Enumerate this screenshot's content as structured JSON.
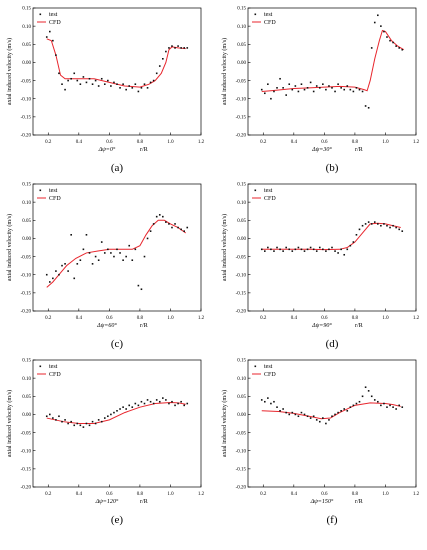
{
  "figure": {
    "ylabel": "axial induced velocity (m/s)",
    "xlabel": "r/R",
    "xticks": [
      "0.2",
      "0.4",
      "0.6",
      "0.8",
      "1.0",
      "1.2"
    ],
    "yticks": [
      "0.15",
      "0.10",
      "0.05",
      "0.00",
      "-0.05",
      "-0.10",
      "-0.15",
      "-0.20"
    ],
    "legend": {
      "test": "test",
      "cfd": "CFD"
    },
    "colors": {
      "cfd": "#e8262d",
      "test": "#111111"
    }
  },
  "chart_data": [
    {
      "type": "scatter",
      "tag": "(a)",
      "phase_label": "Δψ=0°",
      "xlim": [
        0.1,
        1.2
      ],
      "ylim": [
        -0.2,
        0.15
      ],
      "series": [
        {
          "name": "test",
          "x": [
            0.19,
            0.21,
            0.23,
            0.25,
            0.27,
            0.29,
            0.31,
            0.33,
            0.35,
            0.37,
            0.39,
            0.41,
            0.43,
            0.45,
            0.47,
            0.49,
            0.51,
            0.53,
            0.55,
            0.57,
            0.59,
            0.61,
            0.63,
            0.65,
            0.67,
            0.69,
            0.71,
            0.73,
            0.75,
            0.77,
            0.79,
            0.81,
            0.83,
            0.85,
            0.87,
            0.89,
            0.91,
            0.93,
            0.95,
            0.97,
            0.99,
            1.01,
            1.03,
            1.05,
            1.07,
            1.09,
            1.11
          ],
          "y": [
            0.07,
            0.085,
            0.06,
            0.02,
            -0.03,
            -0.06,
            -0.075,
            -0.05,
            -0.045,
            -0.03,
            -0.05,
            -0.06,
            -0.04,
            -0.055,
            -0.045,
            -0.06,
            -0.05,
            -0.065,
            -0.045,
            -0.06,
            -0.05,
            -0.065,
            -0.055,
            -0.06,
            -0.07,
            -0.06,
            -0.075,
            -0.065,
            -0.07,
            -0.06,
            -0.08,
            -0.07,
            -0.06,
            -0.07,
            -0.055,
            -0.05,
            -0.03,
            -0.01,
            0.01,
            0.03,
            0.04,
            0.045,
            0.04,
            0.045,
            0.04,
            0.04,
            0.04
          ]
        },
        {
          "name": "CFD",
          "x": [
            0.19,
            0.22,
            0.25,
            0.28,
            0.31,
            0.35,
            0.4,
            0.5,
            0.6,
            0.7,
            0.8,
            0.86,
            0.9,
            0.94,
            0.97,
            0.99,
            1.01,
            1.05,
            1.1
          ],
          "y": [
            0.065,
            0.06,
            0.02,
            -0.035,
            -0.045,
            -0.045,
            -0.045,
            -0.045,
            -0.055,
            -0.065,
            -0.068,
            -0.06,
            -0.05,
            -0.03,
            0.0,
            0.035,
            0.043,
            0.04,
            0.038
          ]
        }
      ]
    },
    {
      "type": "scatter",
      "tag": "(b)",
      "phase_label": "Δψ=30°",
      "xlim": [
        0.1,
        1.2
      ],
      "ylim": [
        -0.2,
        0.15
      ],
      "series": [
        {
          "name": "test",
          "x": [
            0.19,
            0.21,
            0.23,
            0.25,
            0.27,
            0.29,
            0.31,
            0.33,
            0.35,
            0.37,
            0.39,
            0.41,
            0.43,
            0.45,
            0.47,
            0.49,
            0.51,
            0.53,
            0.55,
            0.57,
            0.59,
            0.61,
            0.63,
            0.65,
            0.67,
            0.69,
            0.71,
            0.73,
            0.75,
            0.77,
            0.79,
            0.81,
            0.83,
            0.85,
            0.87,
            0.89,
            0.91,
            0.93,
            0.95,
            0.97,
            0.99,
            1.01,
            1.03,
            1.05,
            1.07,
            1.09,
            1.11
          ],
          "y": [
            -0.075,
            -0.085,
            -0.06,
            -0.1,
            -0.08,
            -0.07,
            -0.045,
            -0.07,
            -0.09,
            -0.06,
            -0.075,
            -0.065,
            -0.08,
            -0.06,
            -0.075,
            -0.07,
            -0.055,
            -0.08,
            -0.065,
            -0.07,
            -0.06,
            -0.075,
            -0.065,
            -0.07,
            -0.08,
            -0.06,
            -0.07,
            -0.075,
            -0.065,
            -0.075,
            -0.08,
            -0.07,
            -0.075,
            -0.08,
            -0.12,
            -0.125,
            0.04,
            0.11,
            0.13,
            0.1,
            0.085,
            0.07,
            0.06,
            0.055,
            0.045,
            0.04,
            0.035
          ]
        },
        {
          "name": "CFD",
          "x": [
            0.19,
            0.25,
            0.3,
            0.4,
            0.5,
            0.6,
            0.7,
            0.8,
            0.86,
            0.88,
            0.9,
            0.93,
            0.96,
            0.98,
            1.0,
            1.04,
            1.08,
            1.12
          ],
          "y": [
            -0.08,
            -0.078,
            -0.076,
            -0.072,
            -0.07,
            -0.068,
            -0.066,
            -0.068,
            -0.075,
            -0.078,
            -0.05,
            0.01,
            0.06,
            0.088,
            0.085,
            0.06,
            0.045,
            0.035
          ]
        }
      ]
    },
    {
      "type": "scatter",
      "tag": "(c)",
      "phase_label": "Δψ=60°",
      "xlim": [
        0.1,
        1.2
      ],
      "ylim": [
        -0.2,
        0.15
      ],
      "series": [
        {
          "name": "test",
          "x": [
            0.19,
            0.21,
            0.23,
            0.25,
            0.27,
            0.29,
            0.31,
            0.33,
            0.35,
            0.37,
            0.39,
            0.41,
            0.43,
            0.45,
            0.47,
            0.49,
            0.51,
            0.53,
            0.55,
            0.57,
            0.59,
            0.61,
            0.63,
            0.65,
            0.67,
            0.69,
            0.71,
            0.73,
            0.75,
            0.77,
            0.79,
            0.81,
            0.83,
            0.85,
            0.87,
            0.89,
            0.91,
            0.93,
            0.95,
            0.97,
            0.99,
            1.01,
            1.03,
            1.05,
            1.07,
            1.09,
            1.11
          ],
          "y": [
            -0.1,
            -0.12,
            -0.11,
            -0.09,
            -0.1,
            -0.075,
            -0.07,
            -0.09,
            0.01,
            -0.11,
            -0.07,
            -0.06,
            -0.03,
            0.01,
            -0.04,
            -0.07,
            -0.05,
            -0.06,
            -0.01,
            -0.04,
            -0.03,
            -0.04,
            -0.05,
            -0.03,
            -0.04,
            -0.06,
            -0.05,
            -0.02,
            -0.06,
            -0.03,
            -0.13,
            -0.14,
            -0.05,
            0.0,
            0.02,
            0.04,
            0.06,
            0.065,
            0.06,
            0.045,
            0.04,
            0.03,
            0.04,
            0.03,
            0.025,
            0.02,
            0.03
          ]
        },
        {
          "name": "CFD",
          "x": [
            0.19,
            0.23,
            0.27,
            0.32,
            0.38,
            0.45,
            0.52,
            0.6,
            0.68,
            0.75,
            0.8,
            0.84,
            0.88,
            0.92,
            0.96,
            1.0,
            1.05,
            1.1
          ],
          "y": [
            -0.135,
            -0.12,
            -0.1,
            -0.075,
            -0.055,
            -0.04,
            -0.035,
            -0.03,
            -0.03,
            -0.03,
            -0.02,
            0.01,
            0.035,
            0.05,
            0.05,
            0.04,
            0.03,
            0.015
          ]
        }
      ]
    },
    {
      "type": "scatter",
      "tag": "(d)",
      "phase_label": "Δψ=90°",
      "xlim": [
        0.1,
        1.2
      ],
      "ylim": [
        -0.2,
        0.15
      ],
      "series": [
        {
          "name": "test",
          "x": [
            0.19,
            0.21,
            0.23,
            0.25,
            0.27,
            0.29,
            0.31,
            0.33,
            0.35,
            0.37,
            0.39,
            0.41,
            0.43,
            0.45,
            0.47,
            0.49,
            0.51,
            0.53,
            0.55,
            0.57,
            0.59,
            0.61,
            0.63,
            0.65,
            0.67,
            0.69,
            0.71,
            0.73,
            0.75,
            0.77,
            0.79,
            0.81,
            0.83,
            0.85,
            0.87,
            0.89,
            0.91,
            0.93,
            0.95,
            0.97,
            0.99,
            1.01,
            1.03,
            1.05,
            1.07,
            1.09,
            1.11
          ],
          "y": [
            -0.03,
            -0.035,
            -0.025,
            -0.03,
            -0.035,
            -0.025,
            -0.03,
            -0.035,
            -0.025,
            -0.03,
            -0.035,
            -0.03,
            -0.025,
            -0.03,
            -0.035,
            -0.03,
            -0.025,
            -0.03,
            -0.035,
            -0.025,
            -0.03,
            -0.035,
            -0.03,
            -0.025,
            -0.035,
            -0.04,
            -0.03,
            -0.045,
            -0.03,
            -0.02,
            -0.01,
            0.01,
            0.025,
            0.035,
            0.04,
            0.045,
            0.04,
            0.045,
            0.04,
            0.035,
            0.04,
            0.035,
            0.03,
            0.035,
            0.03,
            0.025,
            0.02
          ]
        },
        {
          "name": "CFD",
          "x": [
            0.19,
            0.3,
            0.4,
            0.5,
            0.6,
            0.7,
            0.75,
            0.8,
            0.85,
            0.9,
            0.95,
            1.0,
            1.05,
            1.1
          ],
          "y": [
            -0.03,
            -0.03,
            -0.03,
            -0.03,
            -0.031,
            -0.03,
            -0.025,
            -0.01,
            0.015,
            0.04,
            0.042,
            0.04,
            0.035,
            0.03
          ]
        }
      ]
    },
    {
      "type": "scatter",
      "tag": "(e)",
      "phase_label": "Δψ=120°",
      "xlim": [
        0.1,
        1.2
      ],
      "ylim": [
        -0.2,
        0.15
      ],
      "series": [
        {
          "name": "test",
          "x": [
            0.19,
            0.21,
            0.23,
            0.25,
            0.27,
            0.29,
            0.31,
            0.33,
            0.35,
            0.37,
            0.39,
            0.41,
            0.43,
            0.45,
            0.47,
            0.49,
            0.51,
            0.53,
            0.55,
            0.57,
            0.59,
            0.61,
            0.63,
            0.65,
            0.67,
            0.69,
            0.71,
            0.73,
            0.75,
            0.77,
            0.79,
            0.81,
            0.83,
            0.85,
            0.87,
            0.89,
            0.91,
            0.93,
            0.95,
            0.97,
            0.99,
            1.01,
            1.03,
            1.05,
            1.07,
            1.09,
            1.11
          ],
          "y": [
            -0.005,
            0.0,
            -0.01,
            -0.015,
            -0.005,
            -0.02,
            -0.015,
            -0.025,
            -0.02,
            -0.03,
            -0.025,
            -0.03,
            -0.035,
            -0.025,
            -0.03,
            -0.02,
            -0.025,
            -0.015,
            -0.02,
            -0.01,
            -0.005,
            0.0,
            0.005,
            0.01,
            0.015,
            0.02,
            0.015,
            0.025,
            0.02,
            0.03,
            0.025,
            0.035,
            0.03,
            0.04,
            0.035,
            0.03,
            0.04,
            0.035,
            0.045,
            0.04,
            0.03,
            0.035,
            0.025,
            0.03,
            0.035,
            0.025,
            0.03
          ]
        },
        {
          "name": "CFD",
          "x": [
            0.19,
            0.3,
            0.4,
            0.5,
            0.6,
            0.7,
            0.8,
            0.9,
            1.0,
            1.05,
            1.1
          ],
          "y": [
            -0.01,
            -0.02,
            -0.025,
            -0.025,
            -0.015,
            0.005,
            0.02,
            0.03,
            0.033,
            0.032,
            0.028
          ]
        }
      ]
    },
    {
      "type": "scatter",
      "tag": "(f)",
      "phase_label": "Δψ=150°",
      "xlim": [
        0.1,
        1.2
      ],
      "ylim": [
        -0.2,
        0.15
      ],
      "series": [
        {
          "name": "test",
          "x": [
            0.19,
            0.21,
            0.23,
            0.25,
            0.27,
            0.29,
            0.31,
            0.33,
            0.35,
            0.37,
            0.39,
            0.41,
            0.43,
            0.45,
            0.47,
            0.49,
            0.51,
            0.53,
            0.55,
            0.57,
            0.59,
            0.61,
            0.63,
            0.65,
            0.67,
            0.69,
            0.71,
            0.73,
            0.75,
            0.77,
            0.79,
            0.81,
            0.83,
            0.85,
            0.87,
            0.89,
            0.91,
            0.93,
            0.95,
            0.97,
            0.99,
            1.01,
            1.03,
            1.05,
            1.07,
            1.09,
            1.11
          ],
          "y": [
            0.04,
            0.035,
            0.045,
            0.03,
            0.035,
            0.02,
            0.01,
            0.015,
            0.005,
            0.0,
            0.005,
            0.0,
            -0.005,
            0.005,
            0.0,
            -0.005,
            -0.01,
            -0.005,
            -0.015,
            -0.02,
            -0.01,
            -0.025,
            -0.015,
            -0.005,
            0.0,
            0.005,
            0.01,
            0.015,
            0.01,
            0.02,
            0.025,
            0.03,
            0.035,
            0.05,
            0.075,
            0.065,
            0.05,
            0.04,
            0.035,
            0.025,
            0.03,
            0.02,
            0.025,
            0.02,
            0.015,
            0.025,
            0.02
          ]
        },
        {
          "name": "CFD",
          "x": [
            0.19,
            0.3,
            0.4,
            0.5,
            0.58,
            0.64,
            0.7,
            0.8,
            0.9,
            1.0,
            1.05,
            1.1
          ],
          "y": [
            0.01,
            0.008,
            0.003,
            -0.005,
            -0.012,
            -0.01,
            0.005,
            0.025,
            0.032,
            0.03,
            0.027,
            0.022
          ]
        }
      ]
    }
  ]
}
